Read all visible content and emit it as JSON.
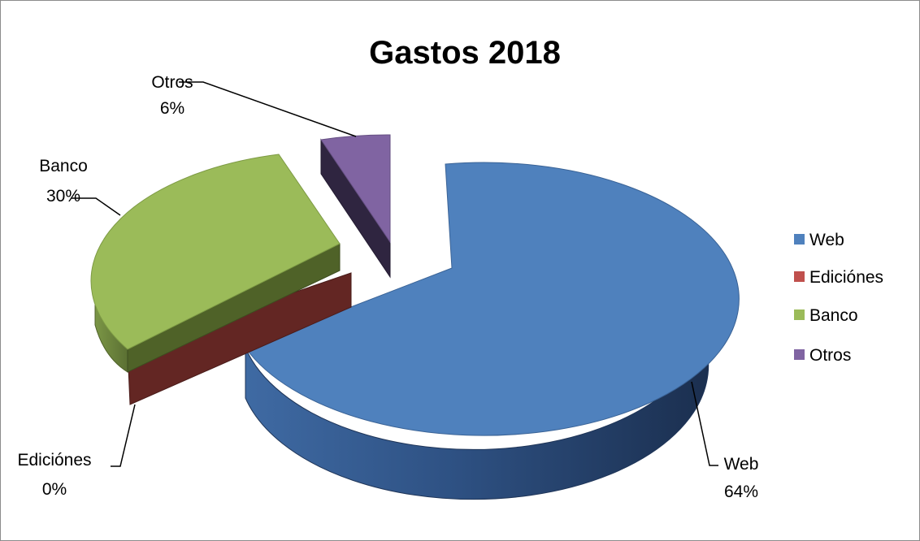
{
  "chart_data": {
    "type": "pie",
    "title": "Gastos 2018",
    "labels": [
      "Web",
      "Ediciónes",
      "Banco",
      "Otros"
    ],
    "values": [
      64,
      0,
      30,
      6
    ],
    "percent_labels": [
      "64%",
      "0%",
      "30%",
      "6%"
    ],
    "colors": [
      "#4f81bd",
      "#c0504d",
      "#9bbb59",
      "#8064a2"
    ],
    "three_d": true,
    "exploded": true,
    "legend_position": "right"
  }
}
